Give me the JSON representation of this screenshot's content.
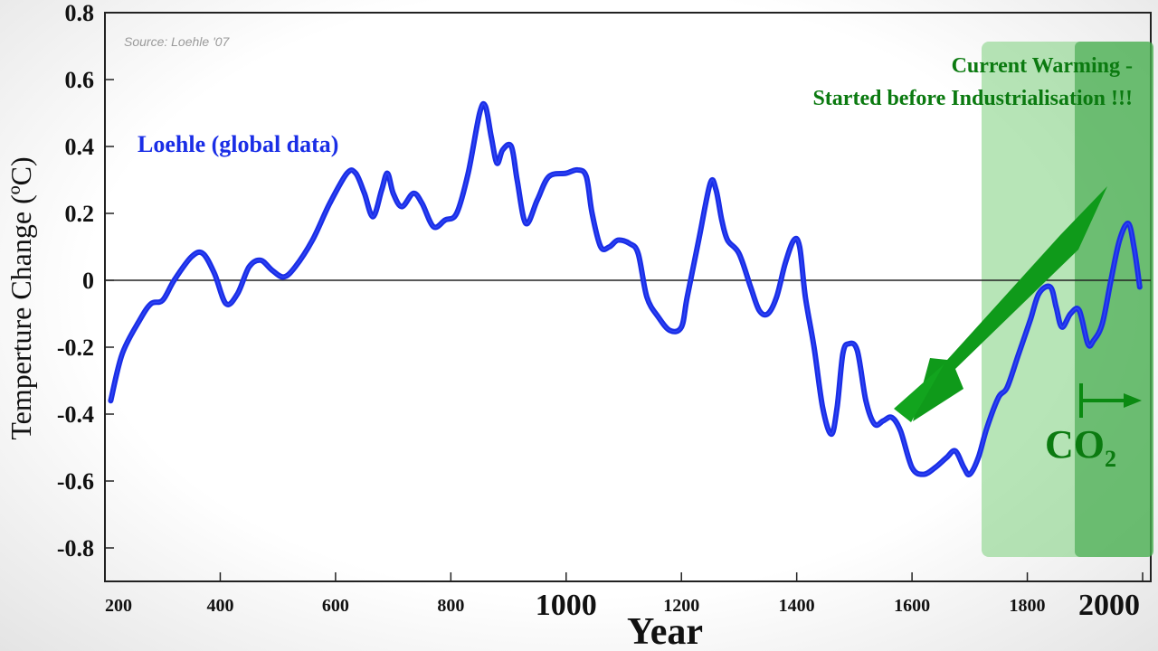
{
  "chart_data": {
    "type": "line",
    "title": "",
    "source": "Source: Loehle '07",
    "xlabel": "Year",
    "ylabel": "Temperture Change (ºC)",
    "xlim": [
      200,
      2000
    ],
    "ylim": [
      -0.9,
      0.8
    ],
    "y_ticks": [
      {
        "v": 0.8,
        "label": "0.8"
      },
      {
        "v": 0.6,
        "label": "0.6"
      },
      {
        "v": 0.4,
        "label": "0.4"
      },
      {
        "v": 0.2,
        "label": "0.2"
      },
      {
        "v": 0.0,
        "label": "0"
      },
      {
        "v": -0.2,
        "label": "-0.2"
      },
      {
        "v": -0.4,
        "label": "-0.4"
      },
      {
        "v": -0.6,
        "label": "-0.6"
      },
      {
        "v": -0.8,
        "label": "-0.8"
      }
    ],
    "x_ticks": [
      {
        "v": 200,
        "label": "200",
        "big": false
      },
      {
        "v": 400,
        "label": "400",
        "big": false
      },
      {
        "v": 600,
        "label": "600",
        "big": false
      },
      {
        "v": 800,
        "label": "800",
        "big": false
      },
      {
        "v": 1000,
        "label": "1000",
        "big": true
      },
      {
        "v": 1200,
        "label": "1200",
        "big": false
      },
      {
        "v": 1400,
        "label": "1400",
        "big": false
      },
      {
        "v": 1600,
        "label": "1600",
        "big": false
      },
      {
        "v": 1800,
        "label": "1800",
        "big": false
      },
      {
        "v": 2000,
        "label": "2000",
        "big": true
      }
    ],
    "grid": false,
    "zero_line": true,
    "series": [
      {
        "name": "Loehle (global data)",
        "color": "#1a2ee6",
        "x": [
          210,
          230,
          260,
          280,
          300,
          320,
          350,
          370,
          390,
          410,
          430,
          450,
          470,
          490,
          510,
          530,
          560,
          590,
          620,
          635,
          650,
          665,
          680,
          690,
          700,
          715,
          735,
          750,
          770,
          790,
          810,
          830,
          850,
          860,
          870,
          880,
          890,
          905,
          915,
          930,
          950,
          970,
          1000,
          1020,
          1035,
          1045,
          1060,
          1075,
          1090,
          1110,
          1125,
          1140,
          1160,
          1180,
          1200,
          1210,
          1230,
          1250,
          1260,
          1270,
          1280,
          1300,
          1320,
          1335,
          1350,
          1365,
          1380,
          1395,
          1405,
          1415,
          1430,
          1445,
          1460,
          1470,
          1480,
          1490,
          1505,
          1520,
          1535,
          1550,
          1565,
          1580,
          1600,
          1620,
          1640,
          1660,
          1675,
          1690,
          1700,
          1715,
          1730,
          1750,
          1765,
          1785,
          1805,
          1820,
          1840,
          1850,
          1860,
          1875,
          1890,
          1905,
          1915,
          1930,
          1945,
          1960,
          1975,
          1985,
          1995
        ],
        "y": [
          -0.36,
          -0.22,
          -0.12,
          -0.07,
          -0.06,
          0.0,
          0.07,
          0.08,
          0.02,
          -0.07,
          -0.04,
          0.04,
          0.06,
          0.03,
          0.01,
          0.04,
          0.12,
          0.23,
          0.32,
          0.32,
          0.26,
          0.19,
          0.27,
          0.32,
          0.26,
          0.22,
          0.26,
          0.23,
          0.16,
          0.18,
          0.2,
          0.32,
          0.5,
          0.52,
          0.43,
          0.35,
          0.39,
          0.4,
          0.3,
          0.17,
          0.24,
          0.31,
          0.32,
          0.33,
          0.31,
          0.2,
          0.1,
          0.1,
          0.12,
          0.11,
          0.08,
          -0.05,
          -0.11,
          -0.15,
          -0.14,
          -0.05,
          0.12,
          0.29,
          0.27,
          0.18,
          0.12,
          0.08,
          -0.02,
          -0.09,
          -0.1,
          -0.05,
          0.05,
          0.12,
          0.1,
          -0.05,
          -0.2,
          -0.38,
          -0.46,
          -0.38,
          -0.22,
          -0.19,
          -0.21,
          -0.36,
          -0.43,
          -0.42,
          -0.41,
          -0.45,
          -0.56,
          -0.58,
          -0.56,
          -0.53,
          -0.51,
          -0.56,
          -0.58,
          -0.53,
          -0.44,
          -0.35,
          -0.32,
          -0.22,
          -0.12,
          -0.04,
          -0.02,
          -0.08,
          -0.14,
          -0.1,
          -0.09,
          -0.19,
          -0.18,
          -0.13,
          0.0,
          0.12,
          0.17,
          0.1,
          -0.02
        ]
      }
    ],
    "annotations": {
      "series_label": "Loehle (global data)",
      "warming_line1": "Current Warming -",
      "warming_line2": "Started before Industrialisation !!!",
      "co2_main": "CO",
      "co2_sub": "2",
      "accent_green": "#0b8a12",
      "shade_green": "#7ccf7c",
      "shade_dark_green": "#2f9e3a"
    }
  }
}
